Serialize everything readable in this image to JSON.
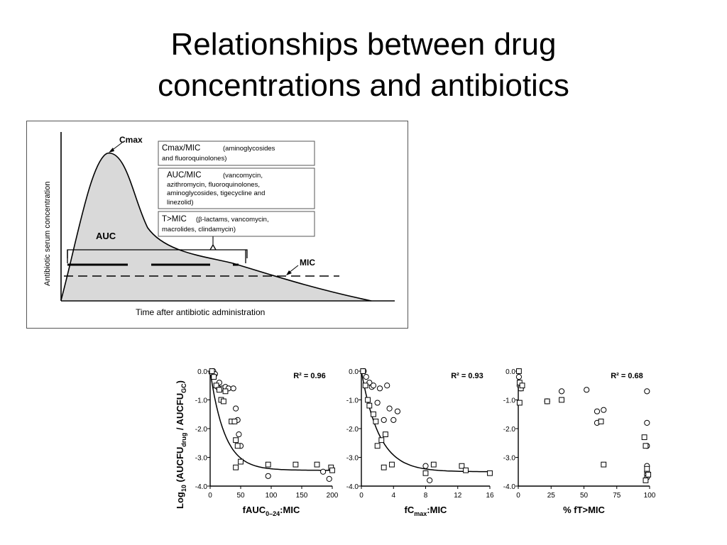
{
  "title": {
    "line1": "Relationships between drug",
    "line2": "concentrations and antibiotics"
  },
  "pk_diagram": {
    "y_axis_label": "Antibiotic serum concentration",
    "x_axis_label": "Time after antibiotic administration",
    "cmax_label": "Cmax",
    "auc_label": "AUC",
    "mic_label": "MIC",
    "boxes": [
      {
        "head": "Cmax/MIC",
        "lines": [
          "(aminoglycosides",
          "and fluoroquinolones)"
        ]
      },
      {
        "head": "AUC/MIC",
        "lines": [
          "(vancomycin,",
          "azithromycin, fluoroquinolones,",
          "aminoglycosides, tigecycline and",
          "linezolid)"
        ]
      },
      {
        "head": "T>MIC",
        "lines": [
          "(β-lactams, vancomycin,",
          "macrolides, clindamycin)"
        ]
      }
    ]
  },
  "chart_data": [
    {
      "type": "scatter",
      "ylabel": "Log10 (AUCFUdrug / AUCFUGC)",
      "ylabel_parts": {
        "pre": "Log",
        "pre_sub": "10",
        "mid": " (AUCFU",
        "drug_sub": "drug",
        "slash": " / AUCFU",
        "gc_sub": "GC",
        "post": ")"
      },
      "xlabel_parts": {
        "pre": "fAUC",
        "sub": "0–24",
        "post": ":MIC"
      },
      "r2_label": "R² = 0.96",
      "xlim": [
        0,
        200
      ],
      "ylim": [
        -4.0,
        0.0
      ],
      "xticks": [
        "0",
        "50",
        "100",
        "150",
        "200"
      ],
      "yticks": [
        "0.0",
        "-1.0",
        "-2.0",
        "-3.0",
        "-4.0"
      ],
      "fit": {
        "plateau": -3.45,
        "k": 0.042
      },
      "circles": [
        [
          2,
          -0.05
        ],
        [
          5,
          0.0
        ],
        [
          8,
          -0.1
        ],
        [
          12,
          -0.55
        ],
        [
          15,
          -0.4
        ],
        [
          20,
          -0.6
        ],
        [
          25,
          -0.55
        ],
        [
          30,
          -0.6
        ],
        [
          38,
          -0.6
        ],
        [
          42,
          -1.3
        ],
        [
          45,
          -1.7
        ],
        [
          47,
          -2.2
        ],
        [
          50,
          -2.6
        ],
        [
          95,
          -3.65
        ],
        [
          185,
          -3.5
        ],
        [
          195,
          -3.75
        ]
      ],
      "squares": [
        [
          3,
          0.0
        ],
        [
          6,
          -0.2
        ],
        [
          10,
          -0.5
        ],
        [
          15,
          -0.65
        ],
        [
          18,
          -1.0
        ],
        [
          22,
          -1.05
        ],
        [
          25,
          -0.7
        ],
        [
          35,
          -1.75
        ],
        [
          40,
          -1.75
        ],
        [
          42,
          -2.4
        ],
        [
          45,
          -2.6
        ],
        [
          42,
          -3.35
        ],
        [
          50,
          -3.15
        ],
        [
          95,
          -3.25
        ],
        [
          140,
          -3.25
        ],
        [
          175,
          -3.25
        ],
        [
          198,
          -3.35
        ],
        [
          200,
          -3.45
        ]
      ]
    },
    {
      "type": "scatter",
      "xlabel_parts": {
        "pre": "fC",
        "sub": "max",
        "post": ":MIC"
      },
      "r2_label": "R² = 0.93",
      "xlim": [
        0,
        16
      ],
      "ylim": [
        -4.0,
        0.0
      ],
      "xticks": [
        "0",
        "4",
        "8",
        "12",
        "16"
      ],
      "yticks": [
        "0.0",
        "-1.0",
        "-2.0",
        "-3.0",
        "-4.0"
      ],
      "fit": {
        "plateau": -3.5,
        "k": 0.45
      },
      "circles": [
        [
          0.3,
          0.0
        ],
        [
          0.6,
          -0.2
        ],
        [
          1.0,
          -0.4
        ],
        [
          1.3,
          -0.55
        ],
        [
          1.5,
          -0.5
        ],
        [
          2.0,
          -1.1
        ],
        [
          2.3,
          -0.6
        ],
        [
          2.8,
          -1.7
        ],
        [
          3.2,
          -0.5
        ],
        [
          3.5,
          -1.3
        ],
        [
          4.0,
          -1.7
        ],
        [
          4.5,
          -1.4
        ],
        [
          8.0,
          -3.3
        ],
        [
          8.5,
          -3.8
        ]
      ],
      "squares": [
        [
          0.2,
          0.0
        ],
        [
          0.5,
          -0.5
        ],
        [
          0.8,
          -1.0
        ],
        [
          1.0,
          -1.2
        ],
        [
          1.5,
          -1.5
        ],
        [
          1.8,
          -1.75
        ],
        [
          2.0,
          -2.6
        ],
        [
          2.5,
          -2.4
        ],
        [
          3.0,
          -2.2
        ],
        [
          2.8,
          -3.35
        ],
        [
          3.8,
          -3.25
        ],
        [
          8.0,
          -3.55
        ],
        [
          9.0,
          -3.25
        ],
        [
          12.5,
          -3.3
        ],
        [
          13.0,
          -3.45
        ],
        [
          16.0,
          -3.55
        ]
      ]
    },
    {
      "type": "scatter",
      "xlabel_parts": {
        "pre": "% fT",
        "sub": "",
        "post": ">MIC"
      },
      "r2_label": "R² = 0.68",
      "xlim": [
        0,
        100
      ],
      "ylim": [
        -4.0,
        0.0
      ],
      "xticks": [
        "0",
        "25",
        "50",
        "75",
        "100"
      ],
      "yticks": [
        "0.0",
        "-1.0",
        "-2.0",
        "-3.0",
        "-4.0"
      ],
      "circles": [
        [
          0.5,
          -0.2
        ],
        [
          1,
          -0.5
        ],
        [
          2,
          -0.6
        ],
        [
          22,
          -1.05
        ],
        [
          33,
          -0.7
        ],
        [
          52,
          -0.65
        ],
        [
          60,
          -1.4
        ],
        [
          60,
          -1.8
        ],
        [
          65,
          -1.35
        ],
        [
          98,
          -0.7
        ],
        [
          98,
          -1.8
        ],
        [
          98,
          -2.6
        ],
        [
          98,
          -3.3
        ],
        [
          98,
          -3.5
        ],
        [
          98,
          -3.6
        ],
        [
          98,
          -3.7
        ]
      ],
      "squares": [
        [
          0.5,
          0.0
        ],
        [
          1,
          -0.4
        ],
        [
          2,
          -0.6
        ],
        [
          3,
          -0.5
        ],
        [
          1,
          -1.1
        ],
        [
          22,
          -1.05
        ],
        [
          33,
          -1.0
        ],
        [
          63,
          -1.75
        ],
        [
          65,
          -3.25
        ],
        [
          96,
          -2.3
        ],
        [
          97,
          -2.6
        ],
        [
          98,
          -3.4
        ],
        [
          99,
          -3.6
        ],
        [
          97,
          -3.8
        ]
      ]
    }
  ]
}
